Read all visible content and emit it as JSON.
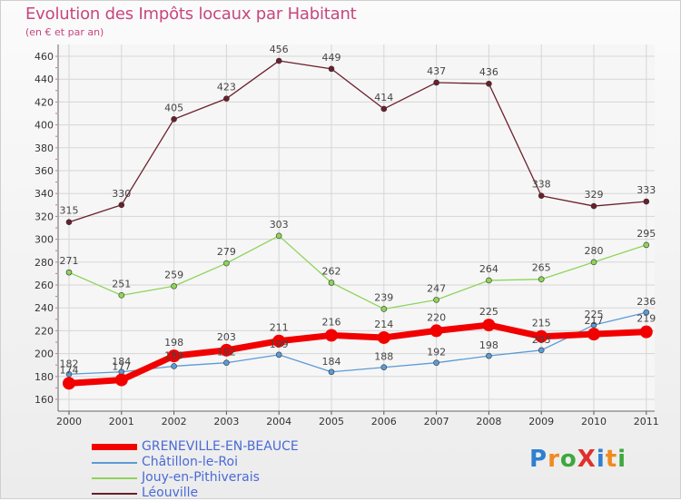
{
  "chart_data": {
    "type": "line",
    "title": "Evolution des Impôts locaux par Habitant",
    "subtitle": "(en € et par an)",
    "categories": [
      "2000",
      "2001",
      "2002",
      "2003",
      "2004",
      "2005",
      "2006",
      "2007",
      "2008",
      "2009",
      "2010",
      "2011"
    ],
    "ylim": [
      160,
      460
    ],
    "yticks": [
      160,
      180,
      200,
      220,
      240,
      260,
      280,
      300,
      320,
      340,
      360,
      380,
      400,
      420,
      440,
      460
    ],
    "series": [
      {
        "name": "Léouville",
        "color": "#6b1f2a",
        "values": [
          315,
          330,
          405,
          423,
          456,
          449,
          414,
          437,
          436,
          338,
          329,
          333
        ]
      },
      {
        "name": "Jouy-en-Pithiverais",
        "color": "#8ed45a",
        "values": [
          271,
          251,
          259,
          279,
          303,
          262,
          239,
          247,
          264,
          265,
          280,
          295
        ]
      },
      {
        "name": "Châtillon-le-Roi",
        "color": "#5b9bd5",
        "values": [
          182,
          184,
          189,
          192,
          199,
          184,
          188,
          192,
          198,
          203,
          225,
          236
        ]
      },
      {
        "name": "GRENEVILLE-EN-BEAUCE",
        "color": "#f20000",
        "values": [
          174,
          177,
          198,
          203,
          211,
          216,
          214,
          220,
          225,
          215,
          217,
          219
        ]
      }
    ]
  },
  "legend": [
    {
      "label": "GRENEVILLE-EN-BEAUCE",
      "color": "#f20000",
      "width": 7
    },
    {
      "label": "Châtillon-le-Roi",
      "color": "#5b9bd5",
      "width": 2
    },
    {
      "label": "Jouy-en-Pithiverais",
      "color": "#8ed45a",
      "width": 2
    },
    {
      "label": "Léouville",
      "color": "#6b1f2a",
      "width": 2
    }
  ],
  "logo": {
    "text": "ProXiti",
    "colors": [
      "#2f7fd0",
      "#f18a1e",
      "#3da83d",
      "#e0302c",
      "#2f7fd0",
      "#f18a1e",
      "#3da83d"
    ]
  }
}
